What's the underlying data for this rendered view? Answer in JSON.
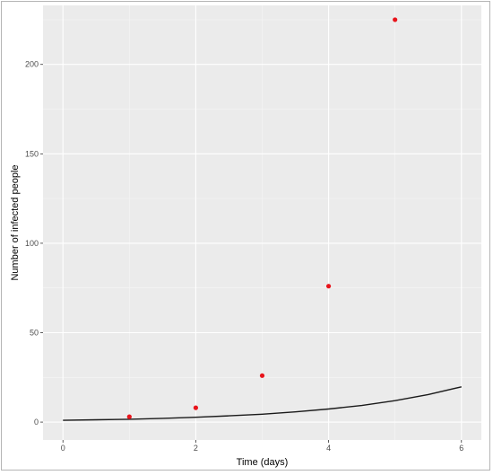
{
  "chart_data": {
    "type": "scatter",
    "title": "",
    "xlabel": "Time (days)",
    "ylabel": "Number of infected people",
    "xlim": [
      -0.3,
      6.3
    ],
    "ylim": [
      -10,
      233
    ],
    "x_ticks": [
      0,
      2,
      4,
      6
    ],
    "y_ticks": [
      0,
      50,
      100,
      150,
      200
    ],
    "grid": true,
    "legend": "none",
    "series": [
      {
        "type": "scatter",
        "color": "#e8141b",
        "x": [
          1,
          2,
          3,
          4,
          5
        ],
        "y": [
          3,
          8,
          26,
          76,
          225
        ]
      },
      {
        "type": "line",
        "color": "#1a1a1a",
        "x": [
          0,
          0.5,
          1,
          1.5,
          2,
          2.5,
          3,
          3.5,
          4,
          4.5,
          5,
          5.5,
          6
        ],
        "y": [
          1.0,
          1.3,
          1.6,
          2.1,
          2.7,
          3.5,
          4.4,
          5.7,
          7.3,
          9.3,
          12.0,
          15.4,
          19.7
        ]
      }
    ],
    "colors": {
      "panel_background": "#ebebeb",
      "major_grid": "#ffffff",
      "minor_grid": "#f5f5f5"
    }
  }
}
